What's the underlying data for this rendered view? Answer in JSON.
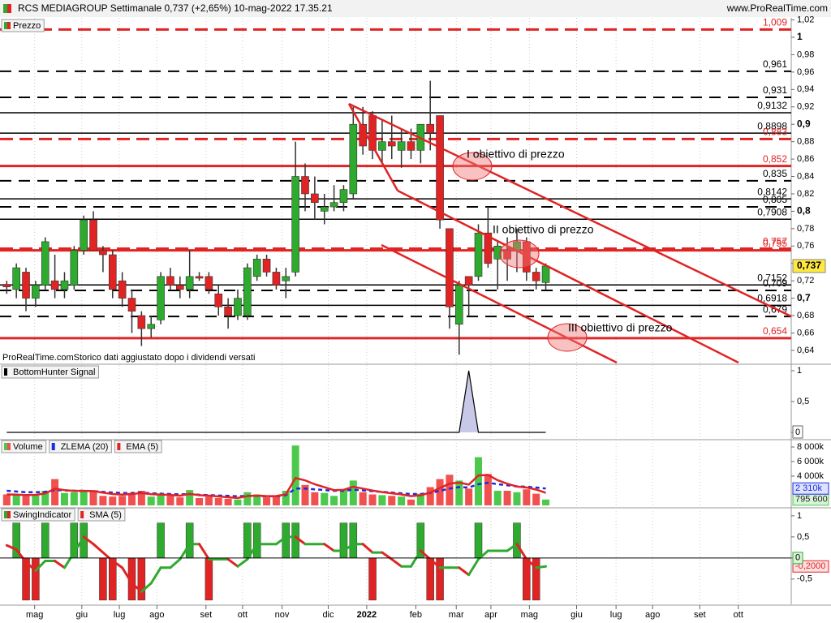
{
  "chart_data": [
    {
      "type": "candlestick",
      "title": "RCS MEDIAGROUP Settimanale 0,737 (+2,65%) 10-mag-2022 17.35.21",
      "source": "www.ProRealTime.com",
      "legend": "Prezzo",
      "note": "ProRealTime.comStorico dati aggiustato dopo i dividendi versati",
      "up_color": "#2eaa2e",
      "down_color": "#e02424",
      "open": [
        0.716,
        0.71,
        0.73,
        0.7,
        0.715,
        0.72,
        0.71,
        0.715,
        0.755,
        0.79,
        0.755,
        0.75,
        0.72,
        0.7,
        0.68,
        0.665,
        0.675,
        0.725,
        0.715,
        0.71,
        0.725,
        0.725,
        0.705,
        0.69,
        0.68,
        0.68,
        0.725,
        0.745,
        0.73,
        0.72,
        0.73,
        0.84,
        0.82,
        0.8,
        0.805,
        0.81,
        0.82,
        0.9,
        0.91,
        0.87,
        0.88,
        0.87,
        0.88,
        0.87,
        0.9,
        0.91,
        0.78,
        0.67,
        0.725,
        0.725,
        0.775,
        0.745,
        0.755,
        0.755,
        0.765,
        0.73,
        0.718
      ],
      "high": [
        0.72,
        0.74,
        0.735,
        0.72,
        0.77,
        0.75,
        0.73,
        0.76,
        0.795,
        0.8,
        0.76,
        0.755,
        0.73,
        0.71,
        0.685,
        0.68,
        0.73,
        0.735,
        0.725,
        0.755,
        0.73,
        0.73,
        0.715,
        0.7,
        0.71,
        0.74,
        0.75,
        0.75,
        0.735,
        0.735,
        0.88,
        0.855,
        0.84,
        0.82,
        0.83,
        0.83,
        0.92,
        0.92,
        0.915,
        0.905,
        0.91,
        0.895,
        0.895,
        0.9,
        0.95,
        0.91,
        0.78,
        0.72,
        0.725,
        0.785,
        0.805,
        0.765,
        0.77,
        0.78,
        0.77,
        0.735,
        0.74
      ],
      "low": [
        0.705,
        0.7,
        0.685,
        0.69,
        0.71,
        0.7,
        0.7,
        0.71,
        0.75,
        0.755,
        0.73,
        0.7,
        0.69,
        0.66,
        0.645,
        0.655,
        0.67,
        0.71,
        0.7,
        0.7,
        0.72,
        0.705,
        0.68,
        0.665,
        0.675,
        0.675,
        0.72,
        0.725,
        0.71,
        0.7,
        0.725,
        0.8,
        0.79,
        0.785,
        0.8,
        0.8,
        0.815,
        0.865,
        0.86,
        0.855,
        0.86,
        0.85,
        0.86,
        0.855,
        0.87,
        0.78,
        0.665,
        0.635,
        0.68,
        0.72,
        0.735,
        0.71,
        0.72,
        0.73,
        0.72,
        0.71,
        0.71
      ],
      "close": [
        0.713,
        0.735,
        0.7,
        0.715,
        0.765,
        0.71,
        0.72,
        0.755,
        0.79,
        0.755,
        0.75,
        0.71,
        0.7,
        0.685,
        0.665,
        0.67,
        0.725,
        0.715,
        0.71,
        0.725,
        0.723,
        0.71,
        0.69,
        0.68,
        0.7,
        0.735,
        0.745,
        0.73,
        0.715,
        0.725,
        0.84,
        0.82,
        0.81,
        0.805,
        0.81,
        0.825,
        0.9,
        0.875,
        0.87,
        0.88,
        0.875,
        0.88,
        0.87,
        0.9,
        0.89,
        0.79,
        0.69,
        0.715,
        0.715,
        0.775,
        0.74,
        0.76,
        0.745,
        0.765,
        0.73,
        0.72,
        0.737
      ],
      "close_labels": {
        "56": "0,737"
      },
      "xlim": [
        -0.7,
        81.5
      ],
      "xticks": [
        {
          "value": 2.9,
          "label": "mag"
        },
        {
          "value": 7.8,
          "label": "giu"
        },
        {
          "value": 11.7,
          "label": "lug"
        },
        {
          "value": 15.6,
          "label": "ago"
        },
        {
          "value": 20.7,
          "label": "set"
        },
        {
          "value": 24.5,
          "label": "ott"
        },
        {
          "value": 28.6,
          "label": "nov"
        },
        {
          "value": 33.4,
          "label": "dic"
        },
        {
          "value": 37.4,
          "label": "2022"
        },
        {
          "value": 42.5,
          "label": "feb"
        },
        {
          "value": 46.7,
          "label": "mar"
        },
        {
          "value": 50.3,
          "label": "apr"
        },
        {
          "value": 54.3,
          "label": "mag"
        },
        {
          "value": 59.2,
          "label": "giu"
        },
        {
          "value": 63.3,
          "label": "lug"
        },
        {
          "value": 67.1,
          "label": "ago"
        },
        {
          "value": 72.0,
          "label": "set"
        },
        {
          "value": 76.0,
          "label": "ott"
        }
      ],
      "ylim": [
        0.625,
        1.0224
      ],
      "yticks": [
        {
          "value": 0.64,
          "label": "0,64"
        },
        {
          "value": 0.66,
          "label": "0,66"
        },
        {
          "value": 0.68,
          "label": "0,68"
        },
        {
          "value": 0.7,
          "label": "0,7"
        },
        {
          "value": 0.72,
          "label": "0,72"
        },
        {
          "value": 0.74,
          "label": "0,74"
        },
        {
          "value": 0.76,
          "label": "0,76"
        },
        {
          "value": 0.78,
          "label": "0,78"
        },
        {
          "value": 0.8,
          "label": "0,8"
        },
        {
          "value": 0.82,
          "label": "0,82"
        },
        {
          "value": 0.84,
          "label": "0,84"
        },
        {
          "value": 0.86,
          "label": "0,86"
        },
        {
          "value": 0.88,
          "label": "0,88"
        },
        {
          "value": 0.9,
          "label": "0,9"
        },
        {
          "value": 0.92,
          "label": "0,92"
        },
        {
          "value": 0.94,
          "label": "0,94"
        },
        {
          "value": 0.96,
          "label": "0,96"
        },
        {
          "value": 0.98,
          "label": "0,98"
        },
        1,
        {
          "value": 1.02,
          "label": "1,02"
        }
      ],
      "levels": [
        {
          "value": 1.009,
          "label": "1,009",
          "color": "#e02424",
          "style": "dashed"
        },
        {
          "value": 0.961,
          "label": "0,961",
          "color": "#000000",
          "style": "dashed"
        },
        {
          "value": 0.931,
          "label": "0,931",
          "color": "#000000",
          "style": "dashed"
        },
        {
          "value": 0.9132,
          "label": "0,9132",
          "color": "#000000",
          "style": "solid"
        },
        {
          "value": 0.8898,
          "label": "0,8898",
          "color": "#000000",
          "style": "solid"
        },
        {
          "value": 0.883,
          "label": "0,883",
          "color": "#e02424",
          "style": "dashed"
        },
        {
          "value": 0.852,
          "label": "0,852",
          "color": "#e02424",
          "style": "solid"
        },
        {
          "value": 0.835,
          "label": "0,835",
          "color": "#000000",
          "style": "dashed"
        },
        {
          "value": 0.8142,
          "label": "0,8142",
          "color": "#000000",
          "style": "solid"
        },
        {
          "value": 0.805,
          "label": "0,805",
          "color": "#000000",
          "style": "dashed"
        },
        {
          "value": 0.7908,
          "label": "0,7908",
          "color": "#000000",
          "style": "solid"
        },
        {
          "value": 0.757,
          "label": "0,757",
          "color": "#e02424",
          "style": "dashed"
        },
        {
          "value": 0.755,
          "label": "0,755",
          "color": "#e02424",
          "style": "solid"
        },
        {
          "value": 0.7152,
          "label": "0,7152",
          "color": "#000000",
          "style": "solid"
        },
        {
          "value": 0.709,
          "label": "0,709",
          "color": "#000000",
          "style": "dashed"
        },
        {
          "value": 0.6918,
          "label": "0,6918",
          "color": "#000000",
          "style": "solid"
        },
        {
          "value": 0.679,
          "label": "0,679",
          "color": "#000000",
          "style": "dashed"
        },
        {
          "value": 0.654,
          "label": "0,654",
          "color": "#e02424",
          "style": "solid"
        }
      ],
      "annotations": [
        "I obiettivo di prezzo",
        "II obiettivo di prezzo",
        "III obiettivo di prezzo"
      ]
    },
    {
      "type": "area",
      "title": "BottomHunter Signal",
      "color": "#000000",
      "values": [
        0,
        0,
        0,
        0,
        0,
        0,
        0,
        0,
        0,
        0,
        0,
        0,
        0,
        0,
        0,
        0,
        0,
        0,
        0,
        0,
        0,
        0,
        0,
        0,
        0,
        0,
        0,
        0,
        0,
        0,
        0,
        0,
        0,
        0,
        0,
        0,
        0,
        0,
        0,
        0,
        0,
        0,
        0,
        0,
        0,
        0,
        0,
        0,
        1,
        0,
        0,
        0,
        0,
        0,
        0,
        0,
        0
      ],
      "ylim": [
        -0.105,
        1.092
      ],
      "yticks": [
        0,
        {
          "value": 0.5,
          "label": "0,5"
        },
        1
      ]
    },
    {
      "type": "bar",
      "series": [
        {
          "name": "Volume",
          "color": "#4cc84c",
          "down_color": "#f05050",
          "values": [
            1500000,
            1400000,
            1300000,
            1500000,
            2000000,
            3600000,
            1700000,
            1800000,
            2000000,
            1900000,
            1300000,
            1200000,
            1300000,
            1700000,
            2000000,
            1200000,
            1400000,
            1300000,
            1100000,
            2100000,
            1000000,
            1200000,
            1000000,
            900000,
            800000,
            1800000,
            1500000,
            1100000,
            1300000,
            2000000,
            8200000,
            2800000,
            1800000,
            1700000,
            1300000,
            2200000,
            3400000,
            1800000,
            1500000,
            1400000,
            1300000,
            1200000,
            800000,
            1600000,
            2500000,
            3600000,
            4200000,
            3400000,
            2300000,
            6600000,
            4300000,
            2000000,
            2000000,
            1800000,
            2200000,
            1600000,
            795600
          ],
          "value_labels": {
            "56": "795 600"
          }
        },
        {
          "name": "ZLEMA (20)",
          "color": "#1a2be0",
          "style": "dashed",
          "values": [
            2000000,
            1900000,
            1800000,
            1800000,
            1850000,
            2100000,
            2050000,
            2000000,
            2000000,
            1950000,
            1850000,
            1750000,
            1700000,
            1700000,
            1750000,
            1650000,
            1600000,
            1550000,
            1500000,
            1550000,
            1450000,
            1400000,
            1350000,
            1300000,
            1250000,
            1300000,
            1300000,
            1250000,
            1250000,
            1400000,
            2300000,
            2300000,
            2200000,
            2100000,
            2000000,
            2000000,
            2150000,
            2050000,
            1950000,
            1850000,
            1750000,
            1650000,
            1550000,
            1550000,
            1700000,
            2000000,
            2300000,
            2500000,
            2450000,
            2900000,
            3100000,
            2900000,
            2750000,
            2600000,
            2550000,
            2450000,
            2310000
          ],
          "value_labels": {
            "56": "2 310k"
          }
        },
        {
          "name": "EMA (5)",
          "color": "#e02424",
          "style": "solid",
          "values": [
            1500000,
            1470000,
            1410000,
            1440000,
            1630000,
            2290000,
            2090000,
            1990000,
            1990000,
            1960000,
            1740000,
            1560000,
            1470000,
            1550000,
            1700000,
            1530000,
            1490000,
            1430000,
            1320000,
            1580000,
            1390000,
            1330000,
            1220000,
            1110000,
            1010000,
            1270000,
            1350000,
            1270000,
            1280000,
            1520000,
            3750000,
            3430000,
            2890000,
            2490000,
            2090000,
            2130000,
            2550000,
            2300000,
            2030000,
            1820000,
            1650000,
            1500000,
            1270000,
            1380000,
            1750000,
            2370000,
            2980000,
            3120000,
            2850000,
            4100000,
            4170000,
            3450000,
            2970000,
            2580000,
            2450000,
            2170000,
            1710000
          ]
        }
      ],
      "ylim": [
        -222000,
        9000000
      ],
      "yticks": [
        {
          "value": 4000000,
          "label": "4 000k"
        },
        {
          "value": 6000000,
          "label": "6 000k"
        },
        {
          "value": 8000000,
          "label": "8 000k"
        }
      ]
    },
    {
      "type": "bar",
      "series": [
        {
          "name": "SwingIndicator",
          "color": "#2eaa2e",
          "down_color": "#e02424",
          "values": [
            0,
            0.83,
            -1,
            -1,
            0.83,
            0,
            0,
            0.83,
            0.83,
            0,
            -1,
            -1,
            0,
            -1,
            -1,
            0,
            0.83,
            0,
            0,
            0.83,
            0,
            -1,
            0,
            0,
            0,
            0.83,
            0.83,
            0,
            0,
            0.83,
            0.83,
            0,
            0,
            0,
            0,
            0.83,
            0.83,
            0,
            -1,
            0,
            0,
            0,
            0,
            0.83,
            -1,
            -1,
            0,
            0,
            0,
            0.83,
            0,
            0,
            0,
            0.83,
            -1,
            -1,
            0
          ]
        },
        {
          "name": "SMA (5)",
          "color": "#e02424",
          "up_color": "#2eaa2e",
          "values": [
            0.3,
            0.2,
            -0.1,
            -0.3,
            -0.07,
            -0.07,
            -0.23,
            0.13,
            0.5,
            0.33,
            0.13,
            -0.07,
            -0.23,
            -0.6,
            -0.8,
            -0.6,
            -0.23,
            -0.23,
            -0.03,
            0.33,
            0.33,
            -0.03,
            -0.03,
            -0.03,
            -0.2,
            -0.03,
            0.33,
            0.33,
            0.33,
            0.5,
            0.5,
            0.33,
            0.33,
            0.33,
            0.17,
            0.17,
            0.33,
            0.33,
            0.13,
            0.13,
            -0.03,
            -0.2,
            -0.2,
            0.17,
            -0.03,
            -0.23,
            -0.23,
            -0.23,
            -0.4,
            -0.03,
            0.17,
            0.17,
            0.17,
            0.33,
            -0.03,
            -0.23,
            -0.2
          ],
          "value_labels": {
            "56": "-0,2000"
          }
        }
      ],
      "ylim": [
        -1.1,
        1.19
      ],
      "yticks": [
        {
          "value": -0.5,
          "label": "-0,5"
        },
        0,
        {
          "value": 0.5,
          "label": "0,5"
        },
        1
      ]
    }
  ]
}
